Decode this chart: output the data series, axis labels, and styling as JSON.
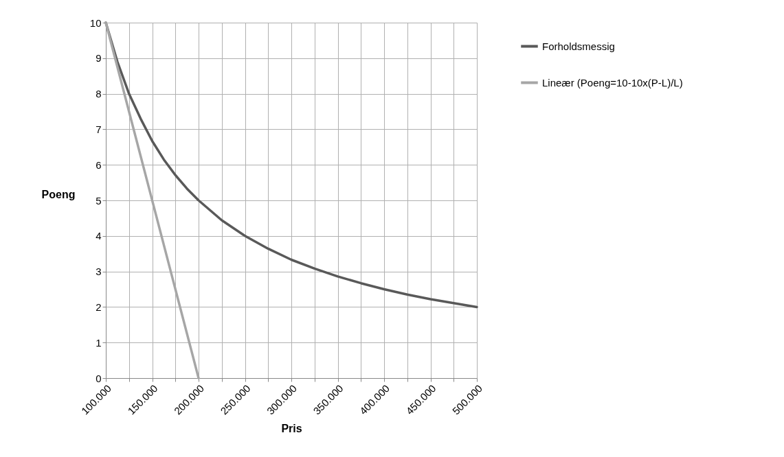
{
  "chart_data": {
    "type": "line",
    "xlabel": "Pris",
    "ylabel": "Poeng",
    "series": [
      {
        "name": "Forholdsmessig",
        "color": "#595959",
        "x": [
          100000,
          112500,
          125000,
          137500,
          150000,
          162500,
          175000,
          187500,
          200000,
          225000,
          250000,
          275000,
          300000,
          325000,
          350000,
          375000,
          400000,
          425000,
          450000,
          475000,
          500000
        ],
        "values": [
          10,
          8.9,
          8,
          7.3,
          6.67,
          6.15,
          5.71,
          5.33,
          5,
          4.44,
          4,
          3.64,
          3.33,
          3.08,
          2.86,
          2.67,
          2.5,
          2.35,
          2.22,
          2.11,
          2
        ]
      },
      {
        "name": "Lineær (Poeng=10-10x(P-L)/L)",
        "color": "#a6a6a6",
        "x": [
          100000,
          200000
        ],
        "values": [
          10,
          0
        ]
      }
    ],
    "xlim": [
      100000,
      500000
    ],
    "xticks": [
      {
        "value": 100000,
        "label": "100.000"
      },
      {
        "value": 125000,
        "label": null
      },
      {
        "value": 150000,
        "label": "150.000"
      },
      {
        "value": 175000,
        "label": null
      },
      {
        "value": 200000,
        "label": "200.000"
      },
      {
        "value": 225000,
        "label": null
      },
      {
        "value": 250000,
        "label": "250.000"
      },
      {
        "value": 275000,
        "label": null
      },
      {
        "value": 300000,
        "label": "300.000"
      },
      {
        "value": 325000,
        "label": null
      },
      {
        "value": 350000,
        "label": "350.000"
      },
      {
        "value": 375000,
        "label": null
      },
      {
        "value": 400000,
        "label": "400.000"
      },
      {
        "value": 425000,
        "label": null
      },
      {
        "value": 450000,
        "label": "450.000"
      },
      {
        "value": 475000,
        "label": null
      },
      {
        "value": 500000,
        "label": "500.000"
      }
    ],
    "ylim": [
      0,
      10
    ],
    "yticks": [
      0,
      1,
      2,
      3,
      4,
      5,
      6,
      7,
      8,
      9,
      10
    ],
    "grid": true,
    "legend": "right",
    "marker": "none",
    "line_style": "solid"
  }
}
